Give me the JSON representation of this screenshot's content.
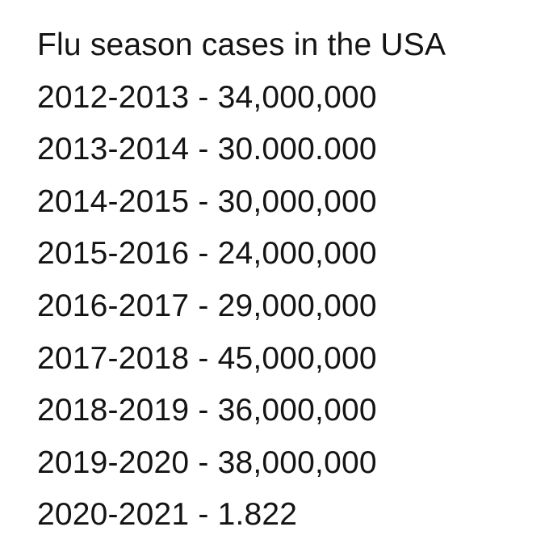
{
  "title": "Flu season cases in the USA",
  "seasons": [
    {
      "text": "2012-2013 - 34,000,000"
    },
    {
      "text": "2013-2014 - 30.000.000"
    },
    {
      "text": "2014-2015 - 30,000,000"
    },
    {
      "text": "2015-2016 - 24,000,000"
    },
    {
      "text": "2016-2017 - 29,000,000"
    },
    {
      "text": "2017-2018 - 45,000,000"
    },
    {
      "text": "2018-2019 - 36,000,000"
    },
    {
      "text": "2019-2020 - 38,000,000"
    },
    {
      "text": "2020-2021 - 1.822"
    }
  ]
}
